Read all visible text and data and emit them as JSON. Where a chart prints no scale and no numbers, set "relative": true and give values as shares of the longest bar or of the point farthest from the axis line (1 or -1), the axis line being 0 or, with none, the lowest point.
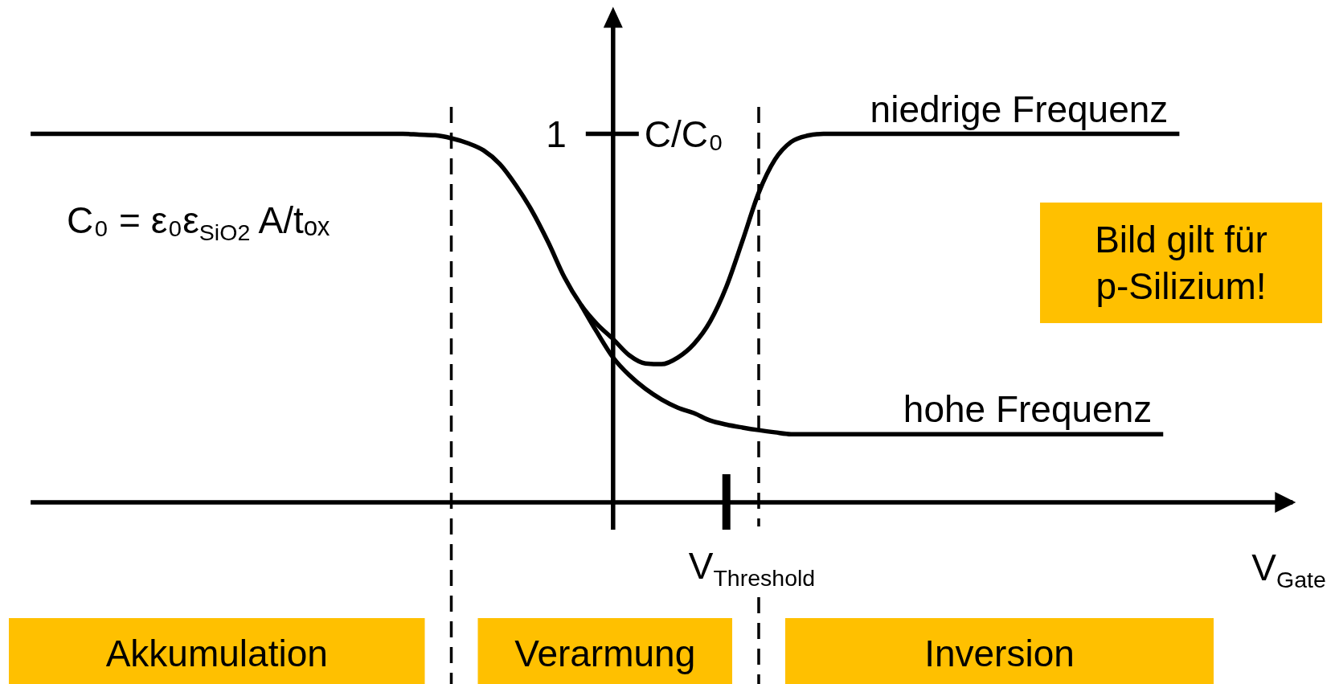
{
  "chart_data": {
    "type": "line",
    "relative": true,
    "categories": [
      null,
      null,
      null,
      null,
      null,
      null,
      null,
      null,
      null,
      null,
      null,
      null,
      null,
      null,
      null,
      null,
      null,
      null,
      null,
      null,
      null,
      null,
      null,
      null,
      null,
      null,
      null,
      null,
      null,
      null,
      null,
      null,
      null,
      null,
      null,
      null,
      null,
      null,
      null,
      null,
      null,
      null,
      null,
      null,
      null,
      null,
      null,
      null,
      null,
      null,
      null,
      null,
      null,
      null,
      null,
      null,
      null,
      null,
      null,
      null,
      null,
      null,
      null,
      null,
      null,
      null,
      null,
      null,
      null,
      null,
      null,
      null,
      null,
      null,
      null,
      null,
      null,
      null,
      null
    ],
    "xlabel": "V$_{Gate}$",
    "ylabel": "C/C₀",
    "series": [
      {
        "name": "niedrige Frequenz",
        "color": "#000000",
        "values": [
          1,
          1,
          1,
          1,
          1,
          1,
          1,
          1,
          1,
          1,
          1,
          1,
          1,
          1,
          1,
          1,
          1,
          1,
          1,
          1,
          1,
          1,
          1,
          1,
          0.998,
          0.996,
          0.988,
          0.975,
          0.955,
          0.918,
          0.86,
          0.79,
          0.705,
          0.61,
          0.537,
          0.484,
          0.443,
          0.399,
          0.377,
          0.375,
          0.393,
          0.43,
          0.491,
          0.585,
          0.71,
          0.84,
          0.93,
          0.978,
          0.995,
          1,
          1,
          1,
          1,
          1,
          1,
          1,
          1,
          1,
          1,
          1,
          1,
          1,
          1,
          1,
          1,
          1,
          1,
          1,
          1,
          1,
          1,
          1,
          null,
          null,
          null,
          null,
          null,
          null,
          null
        ]
      },
      {
        "name": "hohe Frequenz",
        "color": "#000000",
        "values": [
          null,
          null,
          null,
          null,
          null,
          null,
          null,
          null,
          null,
          null,
          null,
          null,
          null,
          null,
          null,
          null,
          null,
          null,
          null,
          null,
          null,
          null,
          null,
          null,
          null,
          null,
          null,
          null,
          null,
          null,
          null,
          null,
          null,
          null,
          0.537,
          0.462,
          0.393,
          0.345,
          0.308,
          0.279,
          0.257,
          0.242,
          0.222,
          0.211,
          0.203,
          0.196,
          0.19,
          0.185,
          0.185,
          0.185,
          0.185,
          0.185,
          0.185,
          0.185,
          0.185,
          0.185,
          0.185,
          0.185,
          0.185,
          0.185,
          0.185,
          0.185,
          0.185,
          0.185,
          0.185,
          0.185,
          0.185,
          0.185,
          0.185,
          0.185,
          0.185,
          null,
          null,
          null,
          null,
          null,
          null,
          null,
          null
        ]
      }
    ],
    "annotations": [
      "1",
      "C₀ = ε₀ε$_{SiO2}$ A/tₒₓ",
      "Bild gilt für p-Silizium!",
      "V$_{Threshold}$",
      "Akkumulation",
      "Verarmung",
      "Inversion"
    ]
  }
}
